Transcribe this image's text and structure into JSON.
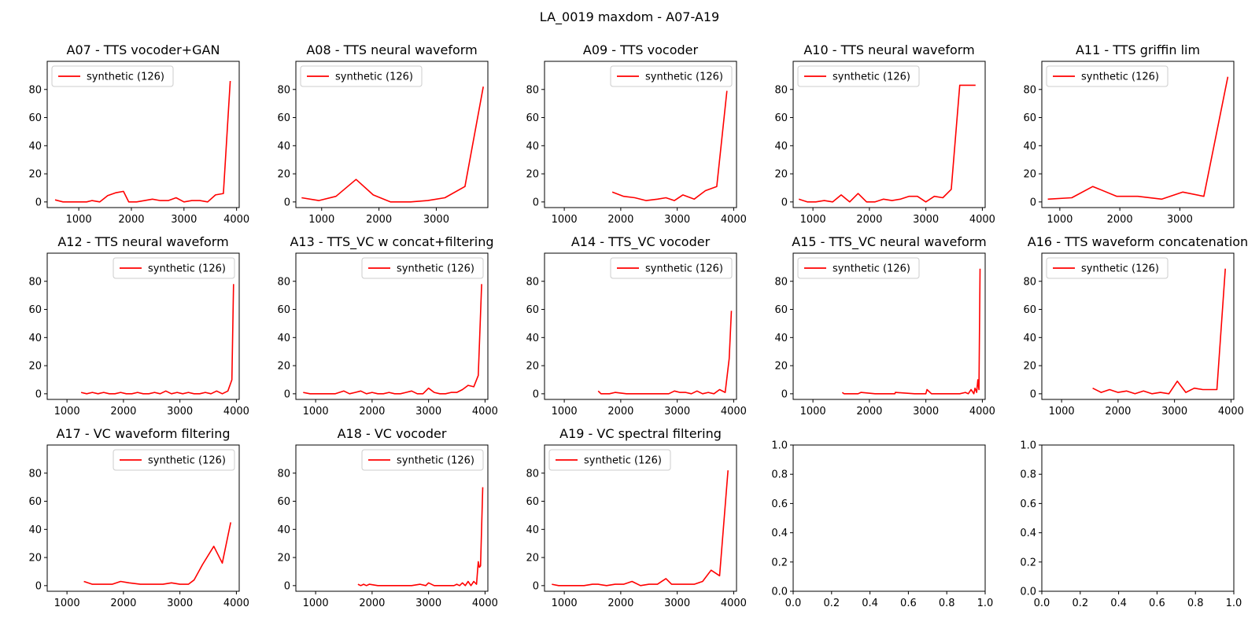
{
  "figure": {
    "title": "LA_0019 maxdom - A07-A19"
  },
  "chart_data": [
    {
      "type": "line",
      "title": "A07 - TTS vocoder+GAN",
      "legend": "top-left",
      "xlim": [
        400,
        4050
      ],
      "ylim": [
        -4,
        100
      ],
      "xticks": [
        1000,
        2000,
        3000,
        4000
      ],
      "yticks": [
        0,
        20,
        40,
        60,
        80
      ],
      "series": [
        {
          "name": "synthetic (126)",
          "color": "#ff0000",
          "x": [
            550,
            700,
            850,
            1000,
            1150,
            1250,
            1400,
            1550,
            1700,
            1850,
            1950,
            2100,
            2250,
            2400,
            2550,
            2700,
            2850,
            3000,
            3150,
            3300,
            3450,
            3600,
            3750,
            3880
          ],
          "y": [
            1.5,
            0,
            0,
            0,
            0,
            1,
            0,
            4.5,
            6.5,
            7.5,
            0,
            0,
            1,
            2,
            1,
            1,
            3,
            0,
            1,
            1,
            0,
            5,
            6,
            86
          ]
        }
      ]
    },
    {
      "type": "line",
      "title": "A08 - TTS neural waveform",
      "legend": "top-left",
      "xlim": [
        550,
        3900
      ],
      "ylim": [
        -4,
        100
      ],
      "xticks": [
        1000,
        2000,
        3000
      ],
      "yticks": [
        0,
        20,
        40,
        60,
        80
      ],
      "series": [
        {
          "name": "synthetic (126)",
          "color": "#ff0000",
          "x": [
            650,
            950,
            1250,
            1600,
            1900,
            2200,
            2550,
            2850,
            3150,
            3500,
            3820
          ],
          "y": [
            3,
            1,
            4,
            16,
            5,
            0,
            0,
            1,
            3,
            11,
            82
          ]
        }
      ]
    },
    {
      "type": "line",
      "title": "A09 - TTS vocoder",
      "legend": "top-right",
      "xlim": [
        650,
        4050
      ],
      "ylim": [
        -4,
        100
      ],
      "xticks": [
        1000,
        2000,
        3000,
        4000
      ],
      "yticks": [
        0,
        20,
        40,
        60,
        80
      ],
      "series": [
        {
          "name": "synthetic (126)",
          "color": "#ff0000",
          "x": [
            1850,
            2050,
            2250,
            2450,
            2650,
            2800,
            2950,
            3100,
            3300,
            3500,
            3700,
            3880
          ],
          "y": [
            7,
            4,
            3,
            1,
            2,
            3,
            1,
            5,
            2,
            8,
            11,
            79
          ]
        }
      ]
    },
    {
      "type": "line",
      "title": "A10 - TTS neural waveform",
      "legend": "top-left",
      "xlim": [
        650,
        4050
      ],
      "ylim": [
        -4,
        100
      ],
      "xticks": [
        1000,
        2000,
        3000,
        4000
      ],
      "yticks": [
        0,
        20,
        40,
        60,
        80
      ],
      "series": [
        {
          "name": "synthetic (126)",
          "color": "#ff0000",
          "x": [
            750,
            900,
            1050,
            1200,
            1350,
            1500,
            1650,
            1800,
            1950,
            2100,
            2250,
            2400,
            2550,
            2700,
            2850,
            3000,
            3150,
            3300,
            3450,
            3600,
            3750,
            3880
          ],
          "y": [
            2,
            0,
            0,
            1,
            0,
            5,
            0,
            6,
            0,
            0,
            2,
            1,
            2,
            4,
            4,
            0,
            4,
            3,
            9,
            83,
            83,
            83
          ]
        }
      ]
    },
    {
      "type": "line",
      "title": "A11 - TTS griffin lim",
      "legend": "top-left",
      "xlim": [
        700,
        3900
      ],
      "ylim": [
        -4,
        100
      ],
      "xticks": [
        1000,
        2000,
        3000
      ],
      "yticks": [
        0,
        20,
        40,
        60,
        80
      ],
      "series": [
        {
          "name": "synthetic (126)",
          "color": "#ff0000",
          "x": [
            800,
            1200,
            1550,
            1950,
            2300,
            2700,
            3050,
            3400,
            3800
          ],
          "y": [
            2,
            3,
            11,
            4,
            4,
            2,
            7,
            4,
            89
          ]
        }
      ]
    },
    {
      "type": "line",
      "title": "A12 - TTS neural waveform",
      "legend": "top-right",
      "xlim": [
        650,
        4050
      ],
      "ylim": [
        -4,
        100
      ],
      "xticks": [
        1000,
        2000,
        3000,
        4000
      ],
      "yticks": [
        0,
        20,
        40,
        60,
        80
      ],
      "series": [
        {
          "name": "synthetic (126)",
          "color": "#ff0000",
          "x": [
            1250,
            1350,
            1450,
            1550,
            1650,
            1750,
            1850,
            1950,
            2050,
            2150,
            2250,
            2350,
            2450,
            2550,
            2650,
            2750,
            2850,
            2950,
            3050,
            3150,
            3250,
            3350,
            3450,
            3550,
            3650,
            3750,
            3850,
            3920,
            3950
          ],
          "y": [
            1,
            0,
            1,
            0,
            1,
            0,
            0,
            1,
            0,
            0,
            1,
            0,
            0,
            1,
            0,
            2,
            0,
            1,
            0,
            1,
            0,
            0,
            1,
            0,
            2,
            0,
            2,
            10,
            78
          ]
        }
      ]
    },
    {
      "type": "line",
      "title": "A13 - TTS_VC w concat+filtering",
      "legend": "top-right",
      "xlim": [
        650,
        4050
      ],
      "ylim": [
        -4,
        100
      ],
      "xticks": [
        1000,
        2000,
        3000,
        4000
      ],
      "yticks": [
        0,
        20,
        40,
        60,
        80
      ],
      "series": [
        {
          "name": "synthetic (126)",
          "color": "#ff0000",
          "x": [
            780,
            900,
            1050,
            1200,
            1350,
            1500,
            1600,
            1700,
            1800,
            1900,
            2000,
            2100,
            2200,
            2300,
            2400,
            2500,
            2600,
            2700,
            2800,
            2900,
            3000,
            3100,
            3200,
            3300,
            3400,
            3500,
            3600,
            3700,
            3800,
            3880,
            3940
          ],
          "y": [
            1,
            0,
            0,
            0,
            0,
            2,
            0,
            1,
            2,
            0,
            1,
            0,
            0,
            1,
            0,
            0,
            1,
            2,
            0,
            0,
            4,
            1,
            0,
            0,
            1,
            1,
            3,
            6,
            5,
            13,
            78
          ]
        }
      ]
    },
    {
      "type": "line",
      "title": "A14 - TTS_VC vocoder",
      "legend": "top-right",
      "xlim": [
        650,
        4050
      ],
      "ylim": [
        -4,
        100
      ],
      "xticks": [
        1000,
        2000,
        3000,
        4000
      ],
      "yticks": [
        0,
        20,
        40,
        60,
        80
      ],
      "series": [
        {
          "name": "synthetic (126)",
          "color": "#ff0000",
          "x": [
            1600,
            1650,
            1800,
            1900,
            2100,
            2300,
            2500,
            2700,
            2850,
            2950,
            3050,
            3150,
            3250,
            3350,
            3450,
            3550,
            3650,
            3750,
            3850,
            3920,
            3960
          ],
          "y": [
            2,
            0,
            0,
            1,
            0,
            0,
            0,
            0,
            0,
            2,
            1,
            1,
            0,
            2,
            0,
            1,
            0,
            3,
            1,
            25,
            59
          ]
        }
      ]
    },
    {
      "type": "line",
      "title": "A15 - TTS_VC neural waveform",
      "legend": "top-left",
      "xlim": [
        650,
        4050
      ],
      "ylim": [
        -4,
        100
      ],
      "xticks": [
        1000,
        2000,
        3000,
        4000
      ],
      "yticks": [
        0,
        20,
        40,
        60,
        80
      ],
      "series": [
        {
          "name": "synthetic (126)",
          "color": "#ff0000",
          "x": [
            1520,
            1550,
            1650,
            1800,
            1850,
            2100,
            2450,
            2460,
            2800,
            3000,
            3020,
            3100,
            3400,
            3600,
            3700,
            3750,
            3800,
            3850,
            3870,
            3900,
            3920,
            3940,
            3960
          ],
          "y": [
            1,
            0,
            0,
            0,
            1,
            0,
            0,
            1,
            0,
            0,
            3,
            0,
            0,
            0,
            1,
            0,
            3,
            0,
            4,
            1,
            10,
            3,
            89
          ]
        }
      ]
    },
    {
      "type": "line",
      "title": "A16 - TTS waveform concatenation",
      "legend": "top-left",
      "xlim": [
        650,
        4050
      ],
      "ylim": [
        -4,
        100
      ],
      "xticks": [
        1000,
        2000,
        3000,
        4000
      ],
      "yticks": [
        0,
        20,
        40,
        60,
        80
      ],
      "series": [
        {
          "name": "synthetic (126)",
          "color": "#ff0000",
          "x": [
            1550,
            1700,
            1850,
            2000,
            2150,
            2300,
            2450,
            2600,
            2750,
            2900,
            3050,
            3200,
            3350,
            3500,
            3650,
            3750,
            3900
          ],
          "y": [
            4,
            1,
            3,
            1,
            2,
            0,
            2,
            0,
            1,
            0,
            9,
            1,
            4,
            3,
            3,
            3,
            89
          ]
        }
      ]
    },
    {
      "type": "line",
      "title": "A17 - VC waveform filtering",
      "legend": "top-right",
      "xlim": [
        650,
        4050
      ],
      "ylim": [
        -4,
        100
      ],
      "xticks": [
        1000,
        2000,
        3000,
        4000
      ],
      "yticks": [
        0,
        20,
        40,
        60,
        80
      ],
      "series": [
        {
          "name": "synthetic (126)",
          "color": "#ff0000",
          "x": [
            1300,
            1450,
            1600,
            1800,
            1950,
            2100,
            2300,
            2500,
            2700,
            2850,
            3000,
            3150,
            3250,
            3400,
            3600,
            3750,
            3900
          ],
          "y": [
            3,
            1,
            1,
            1,
            3,
            2,
            1,
            1,
            1,
            2,
            1,
            1,
            4,
            15,
            28,
            16,
            45
          ]
        }
      ]
    },
    {
      "type": "line",
      "title": "A18 - VC vocoder",
      "legend": "top-right",
      "xlim": [
        650,
        4050
      ],
      "ylim": [
        -4,
        100
      ],
      "xticks": [
        1000,
        2000,
        3000,
        4000
      ],
      "yticks": [
        0,
        20,
        40,
        60,
        80
      ],
      "series": [
        {
          "name": "synthetic (126)",
          "color": "#ff0000",
          "x": [
            1750,
            1800,
            1850,
            1900,
            1950,
            2100,
            2300,
            2500,
            2700,
            2850,
            2950,
            3000,
            3100,
            3300,
            3450,
            3500,
            3550,
            3600,
            3650,
            3700,
            3750,
            3800,
            3850,
            3880,
            3900,
            3920,
            3960
          ],
          "y": [
            1,
            0,
            1,
            0,
            1,
            0,
            0,
            0,
            0,
            1,
            0,
            2,
            0,
            0,
            0,
            1,
            0,
            2,
            0,
            3,
            0,
            3,
            1,
            17,
            13,
            14,
            70
          ]
        }
      ]
    },
    {
      "type": "line",
      "title": "A19 - VC spectral filtering",
      "legend": "top-left",
      "xlim": [
        650,
        4050
      ],
      "ylim": [
        -4,
        100
      ],
      "xticks": [
        1000,
        2000,
        3000,
        4000
      ],
      "yticks": [
        0,
        20,
        40,
        60,
        80
      ],
      "series": [
        {
          "name": "synthetic (126)",
          "color": "#ff0000",
          "x": [
            780,
            900,
            1050,
            1200,
            1350,
            1500,
            1600,
            1750,
            1900,
            2050,
            2200,
            2350,
            2500,
            2650,
            2800,
            2900,
            3000,
            3150,
            3300,
            3450,
            3600,
            3750,
            3900
          ],
          "y": [
            1,
            0,
            0,
            0,
            0,
            1,
            1,
            0,
            1,
            1,
            3,
            0,
            1,
            1,
            5,
            1,
            1,
            1,
            1,
            3,
            11,
            7,
            82
          ]
        }
      ]
    },
    {
      "type": "line",
      "title": "",
      "empty": true,
      "xlim": [
        0,
        1
      ],
      "ylim": [
        0,
        1
      ],
      "xticks": [
        0.0,
        0.2,
        0.4,
        0.6,
        0.8,
        1.0
      ],
      "yticks": [
        0.0,
        0.2,
        0.4,
        0.6,
        0.8,
        1.0
      ],
      "xticklabels": [
        "0.0",
        "0.2",
        "0.4",
        "0.6",
        "0.8",
        "1.0"
      ],
      "yticklabels": [
        "0.0",
        "0.2",
        "0.4",
        "0.6",
        "0.8",
        "1.0"
      ],
      "series": []
    },
    {
      "type": "line",
      "title": "",
      "empty": true,
      "xlim": [
        0,
        1
      ],
      "ylim": [
        0,
        1
      ],
      "xticks": [
        0.0,
        0.2,
        0.4,
        0.6,
        0.8,
        1.0
      ],
      "yticks": [
        0.0,
        0.2,
        0.4,
        0.6,
        0.8,
        1.0
      ],
      "xticklabels": [
        "0.0",
        "0.2",
        "0.4",
        "0.6",
        "0.8",
        "1.0"
      ],
      "yticklabels": [
        "0.0",
        "0.2",
        "0.4",
        "0.6",
        "0.8",
        "1.0"
      ],
      "series": []
    }
  ]
}
